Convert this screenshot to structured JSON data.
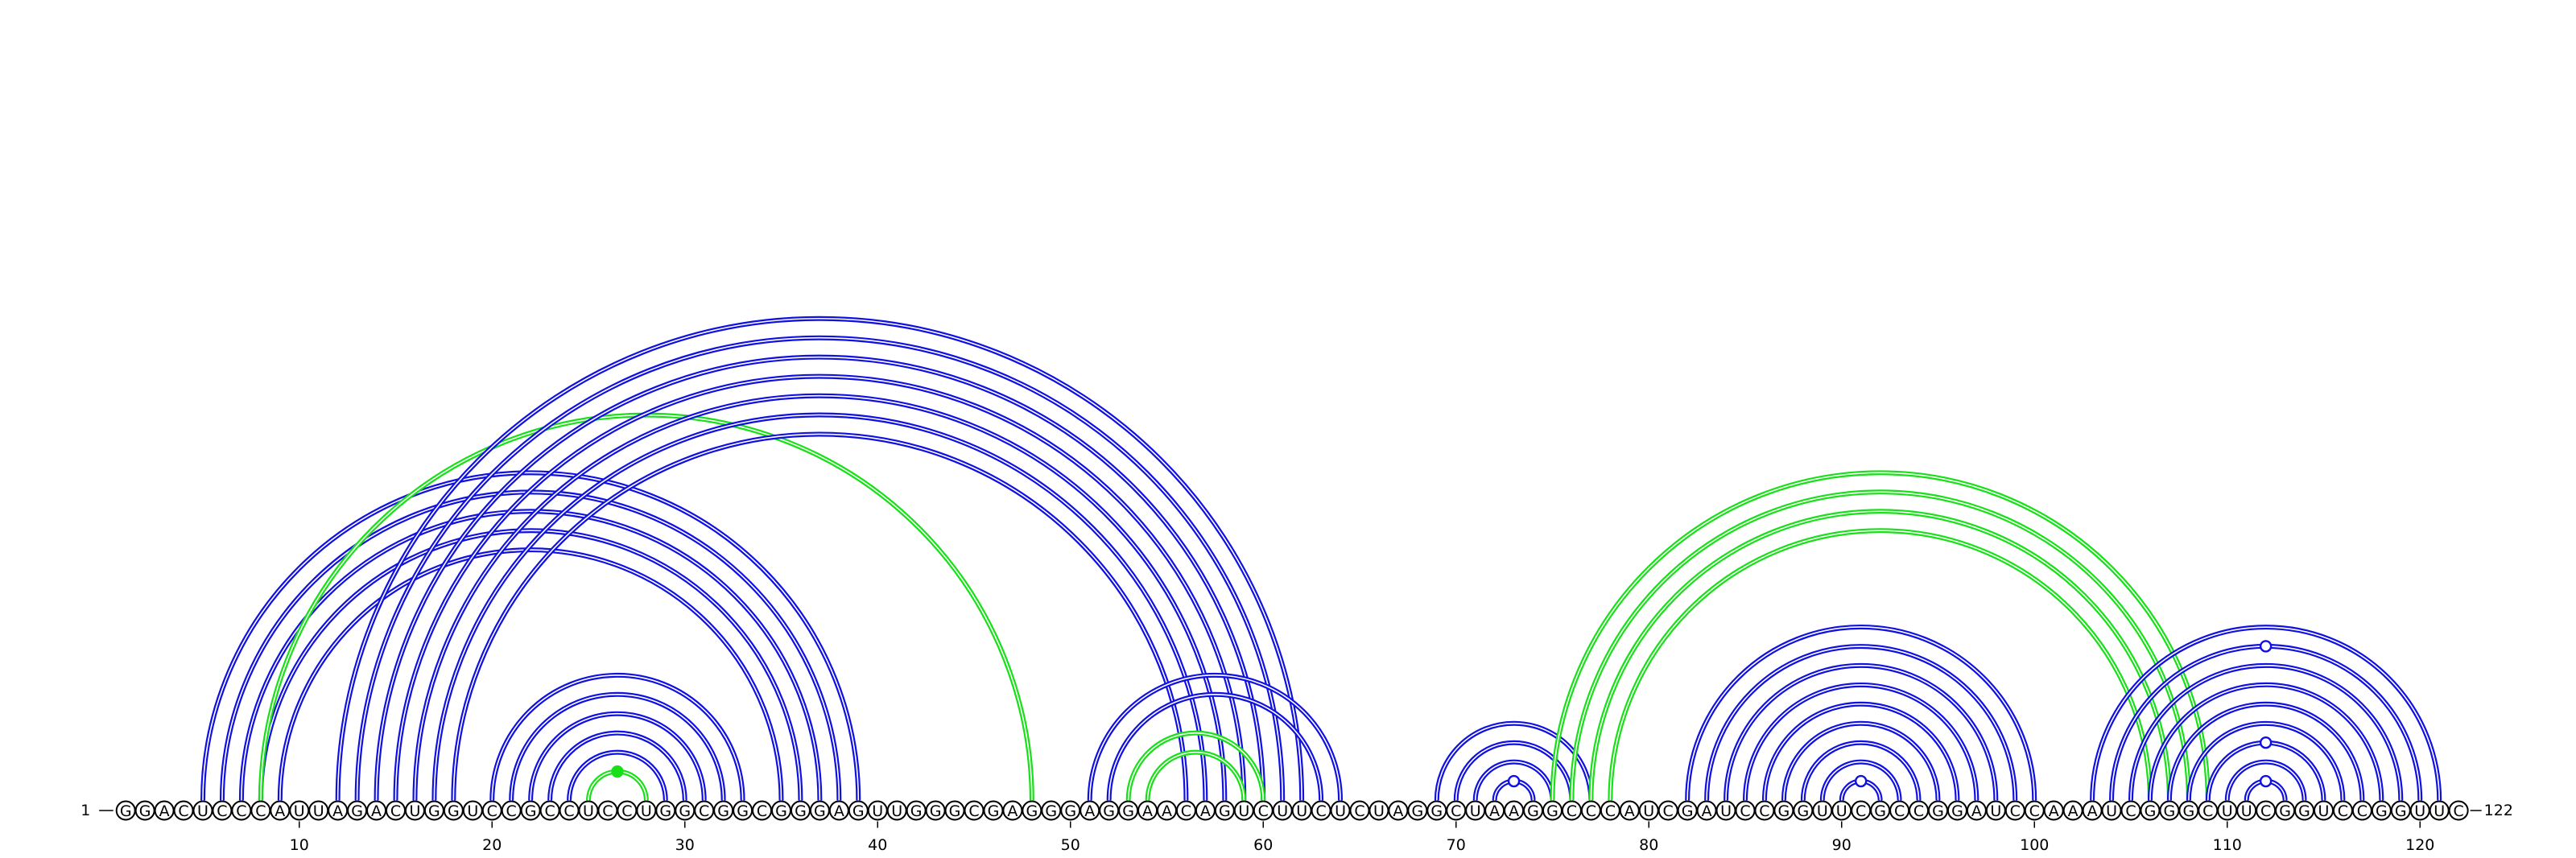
{
  "sequence": "GGACUCCCAUUAGACUGGUCCGCCUCCUGGCGGCGGGAGUUGGGCGAGGGAGGAACAGUCUUCUCUAGGCUAAGGCCCAUCGAUCCGGUUCGCCGGAUCCAAAUCGGGCUUCGGUCCGGUUC",
  "start_label": "1",
  "end_label": "122",
  "tick_positions": [
    10,
    20,
    30,
    40,
    50,
    60,
    70,
    80,
    90,
    100,
    110,
    120
  ],
  "colors": {
    "blue": "#1010e0",
    "green": "#18e018",
    "ink": "#000000"
  },
  "arcs": [
    {
      "i": 5,
      "j": 39,
      "color": "blue"
    },
    {
      "i": 6,
      "j": 38,
      "color": "blue"
    },
    {
      "i": 7,
      "j": 37,
      "color": "blue"
    },
    {
      "i": 8,
      "j": 36,
      "color": "blue"
    },
    {
      "i": 9,
      "j": 35,
      "color": "blue"
    },
    {
      "i": 8,
      "j": 48,
      "color": "green"
    },
    {
      "i": 12,
      "j": 62,
      "color": "blue"
    },
    {
      "i": 13,
      "j": 61,
      "color": "blue"
    },
    {
      "i": 14,
      "j": 60,
      "color": "blue"
    },
    {
      "i": 15,
      "j": 59,
      "color": "blue"
    },
    {
      "i": 16,
      "j": 58,
      "color": "blue"
    },
    {
      "i": 17,
      "j": 57,
      "color": "blue"
    },
    {
      "i": 18,
      "j": 56,
      "color": "blue"
    },
    {
      "i": 20,
      "j": 33,
      "color": "blue"
    },
    {
      "i": 21,
      "j": 32,
      "color": "blue"
    },
    {
      "i": 22,
      "j": 31,
      "color": "blue"
    },
    {
      "i": 23,
      "j": 30,
      "color": "blue"
    },
    {
      "i": 24,
      "j": 29,
      "color": "blue"
    },
    {
      "i": 25,
      "j": 28,
      "color": "green",
      "dot": "filled"
    },
    {
      "i": 51,
      "j": 64,
      "color": "blue"
    },
    {
      "i": 52,
      "j": 63,
      "color": "blue"
    },
    {
      "i": 53,
      "j": 60,
      "color": "green"
    },
    {
      "i": 54,
      "j": 59,
      "color": "green"
    },
    {
      "i": 69,
      "j": 77,
      "color": "blue"
    },
    {
      "i": 70,
      "j": 76,
      "color": "blue"
    },
    {
      "i": 71,
      "j": 75,
      "color": "blue"
    },
    {
      "i": 72,
      "j": 74,
      "color": "blue",
      "dot": "open"
    },
    {
      "i": 75,
      "j": 109,
      "color": "green"
    },
    {
      "i": 76,
      "j": 108,
      "color": "green"
    },
    {
      "i": 77,
      "j": 107,
      "color": "green"
    },
    {
      "i": 78,
      "j": 106,
      "color": "green"
    },
    {
      "i": 82,
      "j": 100,
      "color": "blue"
    },
    {
      "i": 83,
      "j": 99,
      "color": "blue"
    },
    {
      "i": 84,
      "j": 98,
      "color": "blue"
    },
    {
      "i": 85,
      "j": 97,
      "color": "blue"
    },
    {
      "i": 86,
      "j": 96,
      "color": "blue"
    },
    {
      "i": 87,
      "j": 95,
      "color": "blue"
    },
    {
      "i": 88,
      "j": 94,
      "color": "blue"
    },
    {
      "i": 89,
      "j": 93,
      "color": "blue"
    },
    {
      "i": 90,
      "j": 92,
      "color": "blue",
      "dot": "open"
    },
    {
      "i": 103,
      "j": 121,
      "color": "blue"
    },
    {
      "i": 104,
      "j": 120,
      "color": "blue",
      "dot": "open"
    },
    {
      "i": 105,
      "j": 119,
      "color": "blue"
    },
    {
      "i": 106,
      "j": 118,
      "color": "blue"
    },
    {
      "i": 107,
      "j": 117,
      "color": "blue"
    },
    {
      "i": 108,
      "j": 116,
      "color": "blue"
    },
    {
      "i": 109,
      "j": 115,
      "color": "blue",
      "dot": "open"
    },
    {
      "i": 110,
      "j": 114,
      "color": "blue"
    },
    {
      "i": 111,
      "j": 113,
      "color": "blue",
      "dot": "open"
    }
  ]
}
